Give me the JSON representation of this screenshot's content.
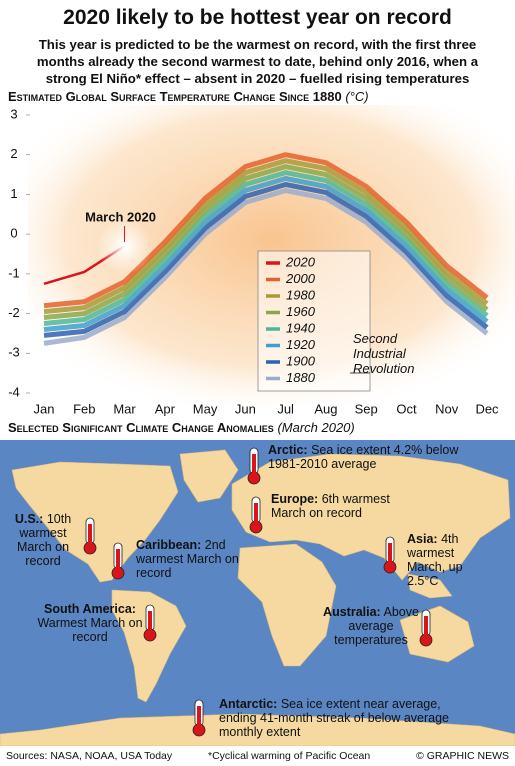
{
  "header": {
    "title": "2020 likely to be hottest year on record",
    "subtitle": "This year is predicted to be the warmest on record, with the first three months already the second warmest to date, behind only 2016, when a strong El Niño* effect – absent in 2020 – fuelled rising temperatures"
  },
  "chart_data": {
    "type": "line",
    "title": "Estimated Global Surface Temperature Change Since 1880",
    "unit": "(°C)",
    "categories": [
      "Jan",
      "Feb",
      "Mar",
      "Apr",
      "May",
      "Jun",
      "Jul",
      "Aug",
      "Sep",
      "Oct",
      "Nov",
      "Dec"
    ],
    "ylim": [
      -4,
      3
    ],
    "yticks": [
      -4,
      -3,
      -2,
      -1,
      0,
      1,
      2,
      3
    ],
    "series": [
      {
        "name": "2020",
        "color": "#d9141b",
        "values": [
          -1.25,
          -0.95,
          -0.3,
          null,
          null,
          null,
          null,
          null,
          null,
          null,
          null,
          null
        ]
      },
      {
        "name": "2000",
        "color": "#e4612c",
        "values": [
          -1.8,
          -1.7,
          -1.2,
          -0.2,
          0.9,
          1.7,
          2.0,
          1.8,
          1.2,
          0.3,
          -0.8,
          -1.6
        ]
      },
      {
        "name": "1980",
        "color": "#a89a3a",
        "values": [
          -1.95,
          -1.85,
          -1.35,
          -0.35,
          0.75,
          1.55,
          1.85,
          1.65,
          1.05,
          0.15,
          -0.95,
          -1.75
        ]
      },
      {
        "name": "1960",
        "color": "#8aa84a",
        "values": [
          -2.1,
          -2.0,
          -1.5,
          -0.5,
          0.6,
          1.4,
          1.7,
          1.5,
          0.9,
          0.0,
          -1.1,
          -1.9
        ]
      },
      {
        "name": "1940",
        "color": "#4fb796",
        "values": [
          -2.25,
          -2.15,
          -1.65,
          -0.65,
          0.45,
          1.25,
          1.55,
          1.35,
          0.75,
          -0.15,
          -1.25,
          -2.05
        ]
      },
      {
        "name": "1920",
        "color": "#3f9fcc",
        "values": [
          -2.4,
          -2.3,
          -1.8,
          -0.8,
          0.3,
          1.1,
          1.4,
          1.2,
          0.6,
          -0.3,
          -1.4,
          -2.2
        ]
      },
      {
        "name": "1900",
        "color": "#2c62b0",
        "values": [
          -2.55,
          -2.45,
          -1.95,
          -0.95,
          0.15,
          0.95,
          1.25,
          1.05,
          0.45,
          -0.45,
          -1.55,
          -2.35
        ]
      },
      {
        "name": "1880",
        "color": "#9aaccc",
        "values": [
          -2.75,
          -2.6,
          -2.1,
          -1.1,
          0.0,
          0.8,
          1.1,
          0.9,
          0.3,
          -0.6,
          -1.7,
          -2.5
        ]
      }
    ],
    "annotations": [
      "March 2020",
      "Second Industrial Revolution"
    ]
  },
  "map": {
    "title": "Selected Significant Climate Change Anomalies",
    "subtitle": "(March 2020)",
    "anomalies": [
      {
        "region": "Arctic:",
        "text": "Sea ice extent 4.2% below 1981-2010 average"
      },
      {
        "region": "Europe:",
        "text": "6th warmest March on record"
      },
      {
        "region": "U.S.:",
        "text": "10th warmest March on record"
      },
      {
        "region": "Caribbean:",
        "text": "2nd warmest March on record"
      },
      {
        "region": "South America:",
        "text": "Warmest March on record"
      },
      {
        "region": "Asia:",
        "text": "4th warmest March, up 2.5°C"
      },
      {
        "region": "Australia:",
        "text": "Above average temperatures"
      },
      {
        "region": "Antarctic:",
        "text": "Sea ice extent near average, ending 41-month streak of below average monthly extent"
      }
    ]
  },
  "footer": {
    "sources": "Sources: NASA, NOAA, USA Today",
    "note": "*Cyclical warming of Pacific Ocean",
    "credit": "© GRAPHIC NEWS"
  }
}
